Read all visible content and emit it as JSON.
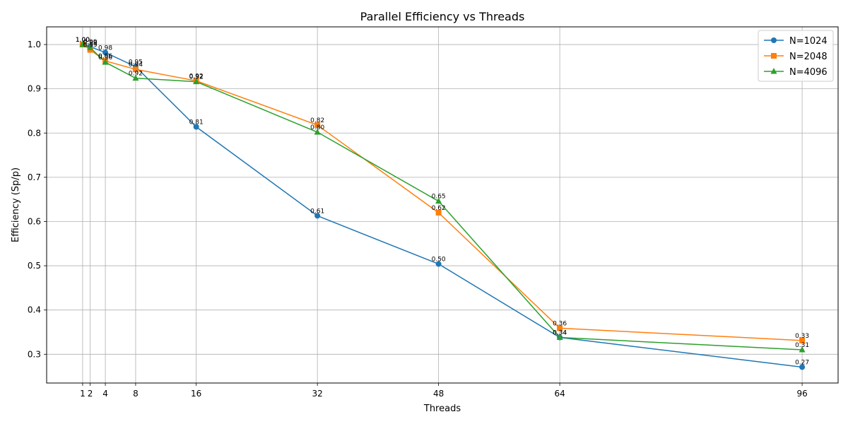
{
  "chart_data": {
    "type": "line",
    "title": "Parallel Efficiency vs Threads",
    "xlabel": "Threads",
    "ylabel": "Efficiency (Sp/p)",
    "x": [
      1,
      2,
      4,
      8,
      16,
      32,
      48,
      64,
      96
    ],
    "x_ticks": [
      1,
      2,
      4,
      8,
      16,
      32,
      48,
      64,
      96
    ],
    "y_ticks": [
      0.3,
      0.4,
      0.5,
      0.6,
      0.7,
      0.8,
      0.9,
      1.0
    ],
    "xlim": [
      -3.75,
      100.75
    ],
    "ylim": [
      0.235,
      1.04
    ],
    "grid": true,
    "legend_position": "top-right",
    "label_format": "2 decimals",
    "series": [
      {
        "name": "N=1024",
        "color": "#1f77b4",
        "marker": "circle",
        "values": [
          1.0,
          0.995,
          0.982,
          0.95,
          0.814,
          0.613,
          0.504,
          0.338,
          0.271
        ]
      },
      {
        "name": "N=2048",
        "color": "#ff7f0e",
        "marker": "square",
        "values": [
          1.0,
          0.988,
          0.963,
          0.944,
          0.918,
          0.818,
          0.62,
          0.359,
          0.331
        ]
      },
      {
        "name": "N=4096",
        "color": "#2ca02c",
        "marker": "triangle",
        "values": [
          1.0,
          0.993,
          0.96,
          0.924,
          0.916,
          0.802,
          0.646,
          0.338,
          0.31
        ]
      }
    ]
  }
}
